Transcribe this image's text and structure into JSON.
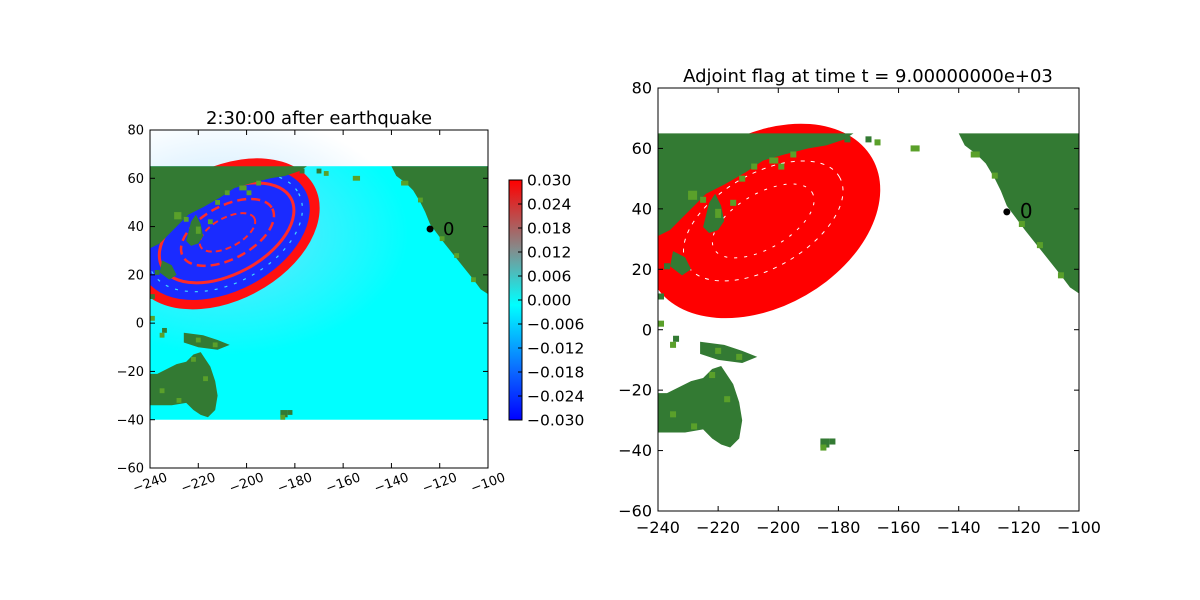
{
  "chart_data": [
    {
      "type": "heatmap",
      "title": "2:30:00 after earthquake",
      "xlim": [
        -240,
        -100
      ],
      "ylim": [
        -60,
        80
      ],
      "xticks": [
        -240,
        -220,
        -200,
        -180,
        -160,
        -140,
        -120,
        -100
      ],
      "yticks": [
        -60,
        -40,
        -20,
        0,
        20,
        40,
        60,
        80
      ],
      "tick_label_rotation_x": -20,
      "grid": false,
      "domain_extent": {
        "x": [
          -240,
          -100
        ],
        "y": [
          -40,
          65
        ]
      },
      "ocean_color": "#00ffff",
      "land_color": "#337a33",
      "land_highlight_color": "#5aa02a",
      "wave_front": {
        "center": [
          -209,
          37
        ],
        "outer_radii": [
          40,
          25
        ],
        "description_values": [
          -0.03,
          0.03
        ]
      },
      "marker": {
        "label": "0",
        "x": -124,
        "y": 39
      },
      "colorbar": {
        "min": -0.03,
        "max": 0.03,
        "ticks": [
          "0.030",
          "0.024",
          "0.018",
          "0.012",
          "0.006",
          "0.000",
          "−0.006",
          "−0.012",
          "−0.018",
          "−0.024",
          "−0.030"
        ],
        "colors": [
          "#0000ff",
          "#0b66ff",
          "#00ffff",
          "#888888",
          "#ff0000"
        ]
      }
    },
    {
      "type": "heatmap",
      "title": "Adjoint flag at time t = 9.00000000e+03",
      "xlim": [
        -240,
        -100
      ],
      "ylim": [
        -60,
        80
      ],
      "xticks": [
        -240,
        -220,
        -200,
        -180,
        -160,
        -140,
        -120,
        -100
      ],
      "yticks": [
        -60,
        -40,
        -20,
        0,
        20,
        40,
        60,
        80
      ],
      "grid": false,
      "flag_color": "#ff0000",
      "flag_region": {
        "center": [
          -205,
          36
        ],
        "outer_radii": [
          44,
          27
        ]
      },
      "land_color": "#337a33",
      "land_highlight_color": "#5aa02a",
      "marker": {
        "label": "0",
        "x": -124,
        "y": 39
      }
    }
  ]
}
